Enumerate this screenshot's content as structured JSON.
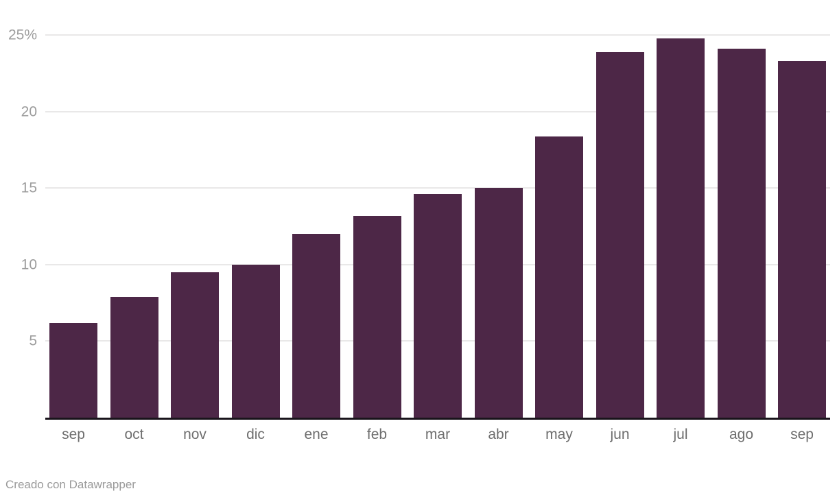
{
  "chart_data": {
    "type": "bar",
    "categories": [
      "sep",
      "oct",
      "nov",
      "dic",
      "ene",
      "feb",
      "mar",
      "abr",
      "may",
      "jun",
      "jul",
      "ago",
      "sep"
    ],
    "values": [
      6.2,
      7.9,
      9.5,
      10.0,
      12.0,
      13.2,
      14.6,
      15.0,
      18.4,
      23.9,
      24.8,
      24.1,
      23.3
    ],
    "title": "",
    "xlabel": "",
    "ylabel": "",
    "ylim": [
      0,
      27.3
    ],
    "yticks": [
      5,
      10,
      15,
      20,
      25
    ],
    "ytick_labels": [
      "5",
      "10",
      "15",
      "20",
      "25%"
    ],
    "grid": true,
    "legend": "none",
    "bar_color": "#4d2747",
    "gridline_color": "#e9e8e8",
    "axis_line_color": "#19141b",
    "ytick_color": "#9d9d9d",
    "xtick_color": "#6e6e6e"
  },
  "footer": {
    "credit": "Creado con Datawrapper"
  }
}
